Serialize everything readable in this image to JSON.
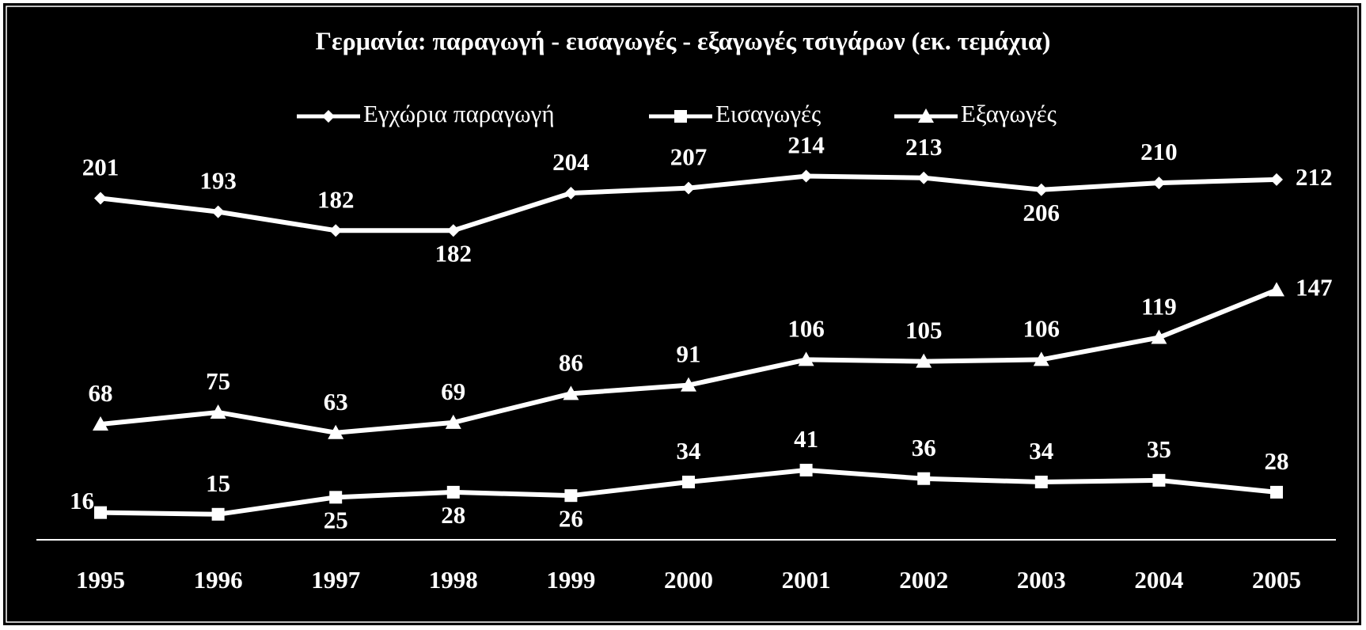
{
  "chart_data": {
    "type": "line",
    "title": "Γερμανία:  παραγωγή -  εισαγωγές - εξαγωγές τσιγάρων (εκ. τεμάχια)",
    "categories": [
      "1995",
      "1996",
      "1997",
      "1998",
      "1999",
      "2000",
      "2001",
      "2002",
      "2003",
      "2004",
      "2005"
    ],
    "series": [
      {
        "name": "Εγχώρια παραγωγή",
        "color": "#ffffff",
        "marker": "diamond",
        "values": [
          201,
          193,
          182,
          182,
          204,
          207,
          214,
          213,
          206,
          210,
          212
        ]
      },
      {
        "name": "Εισαγωγές",
        "color": "#ffffff",
        "marker": "square",
        "values": [
          16,
          15,
          25,
          28,
          26,
          34,
          41,
          36,
          34,
          35,
          28
        ]
      },
      {
        "name": "Εξαγωγές",
        "color": "#ffffff",
        "marker": "triangle",
        "values": [
          68,
          75,
          63,
          69,
          86,
          91,
          106,
          105,
          106,
          119,
          147
        ]
      }
    ]
  }
}
